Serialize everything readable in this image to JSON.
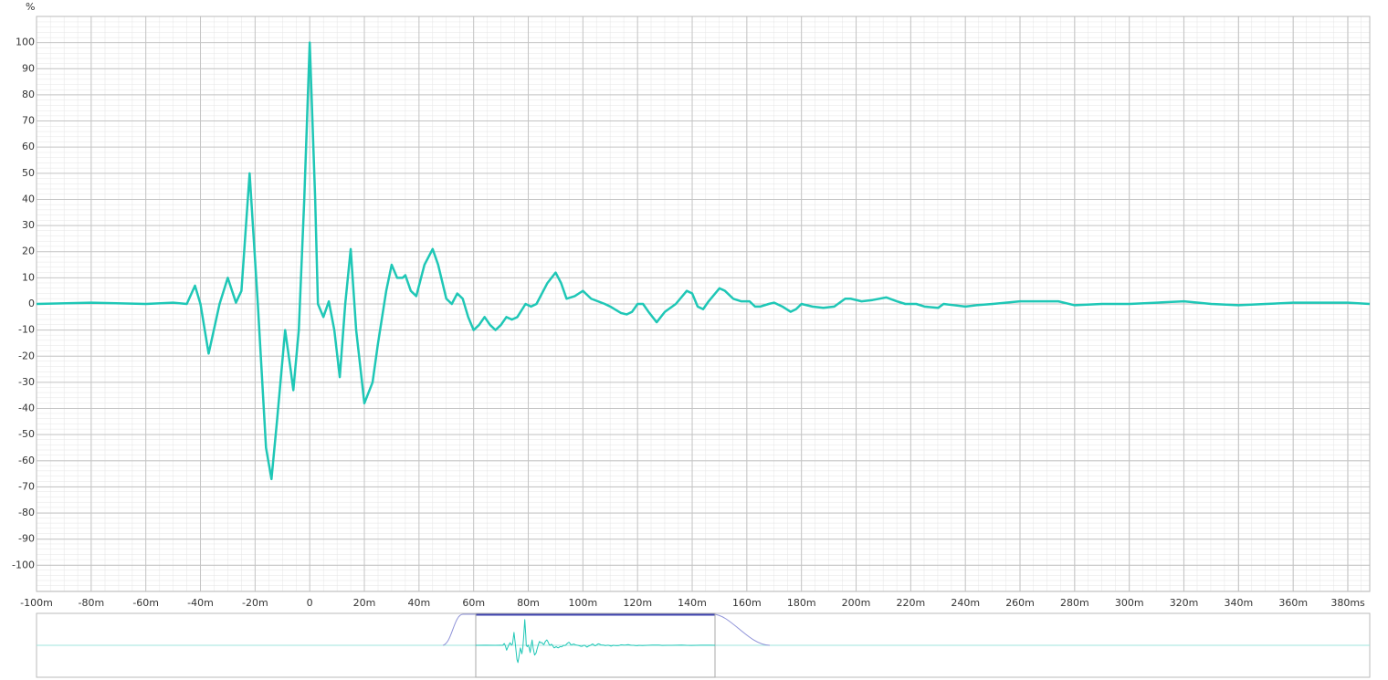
{
  "chart_data": {
    "type": "line",
    "y_label": "%",
    "xlim": [
      -100,
      388
    ],
    "ylim": [
      -110,
      110
    ],
    "grid": true,
    "xticks": [
      {
        "value": -100,
        "label": "-100m"
      },
      {
        "value": -80,
        "label": "-80m"
      },
      {
        "value": -60,
        "label": "-60m"
      },
      {
        "value": -40,
        "label": "-40m"
      },
      {
        "value": -20,
        "label": "-20m"
      },
      0,
      {
        "value": 20,
        "label": "20m"
      },
      {
        "value": 40,
        "label": "40m"
      },
      {
        "value": 60,
        "label": "60m"
      },
      {
        "value": 80,
        "label": "80m"
      },
      {
        "value": 100,
        "label": "100m"
      },
      {
        "value": 120,
        "label": "120m"
      },
      {
        "value": 140,
        "label": "140m"
      },
      {
        "value": 160,
        "label": "160m"
      },
      {
        "value": 180,
        "label": "180m"
      },
      {
        "value": 200,
        "label": "200m"
      },
      {
        "value": 220,
        "label": "220m"
      },
      {
        "value": 240,
        "label": "240m"
      },
      {
        "value": 260,
        "label": "260m"
      },
      {
        "value": 280,
        "label": "280m"
      },
      {
        "value": 300,
        "label": "300m"
      },
      {
        "value": 320,
        "label": "320m"
      },
      {
        "value": 340,
        "label": "340m"
      },
      {
        "value": 360,
        "label": "360m"
      },
      {
        "value": 380,
        "label": "380ms"
      }
    ],
    "yticks": [
      -100,
      -90,
      -80,
      -70,
      -60,
      -50,
      -40,
      -30,
      -20,
      -10,
      0,
      10,
      20,
      30,
      40,
      50,
      60,
      70,
      80,
      90,
      100
    ],
    "series": [
      {
        "color": "#1fc7b6",
        "x": [
          -100,
          -80,
          -60,
          -50,
          -45,
          -42,
          -40,
          -37,
          -33,
          -30,
          -27,
          -25,
          -22,
          -19,
          -16,
          -14,
          -12,
          -9,
          -7,
          -6,
          -4,
          -2,
          0,
          2,
          3,
          5,
          7,
          9,
          11,
          13,
          15,
          17,
          20,
          23,
          25,
          28,
          30,
          32,
          34,
          35,
          37,
          39,
          42,
          45,
          47,
          50,
          52,
          54,
          56,
          58,
          60,
          62,
          64,
          66,
          68,
          70,
          72,
          74,
          76,
          79,
          81,
          83,
          87,
          90,
          92,
          94,
          97,
          100,
          103,
          108,
          110,
          114,
          116,
          118,
          120,
          122,
          124,
          127,
          130,
          134,
          138,
          140,
          142,
          144,
          146,
          150,
          152,
          155,
          158,
          161,
          163,
          165,
          168,
          170,
          173,
          176,
          178,
          180,
          184,
          188,
          192,
          196,
          198,
          202,
          206,
          211,
          215,
          218,
          222,
          225,
          230,
          232,
          236,
          240,
          244,
          250,
          260,
          270,
          274,
          280,
          290,
          300,
          310,
          320,
          330,
          340,
          350,
          360,
          370,
          380,
          388
        ],
        "values": [
          0,
          0.5,
          0,
          0.5,
          0,
          7,
          0,
          -19,
          0,
          10,
          0.5,
          5,
          50,
          0,
          -55,
          -67,
          -45,
          -10,
          -25,
          -33,
          -10,
          40,
          100,
          40,
          0,
          -5,
          1,
          -10,
          -28,
          0,
          21,
          -10,
          -38,
          -30,
          -15,
          5,
          15,
          10,
          10,
          11,
          5,
          3,
          15,
          21,
          15,
          2,
          0,
          4,
          2,
          -5,
          -10,
          -8,
          -5,
          -8,
          -10,
          -8,
          -5,
          -6,
          -5,
          0,
          -1,
          0,
          8,
          12,
          8,
          2,
          3,
          5,
          2,
          0,
          -1,
          -3.5,
          -4,
          -3,
          0,
          0,
          -3,
          -7,
          -3,
          0,
          5,
          4,
          -1,
          -2,
          1,
          6,
          5,
          2,
          1,
          1,
          -1,
          -1,
          0,
          0.5,
          -1,
          -3,
          -2,
          0,
          -1,
          -1.5,
          -1,
          2,
          2,
          1,
          1.5,
          2.5,
          1,
          0,
          0,
          -1,
          -1.5,
          0,
          -0.5,
          -1,
          -0.5,
          0,
          1,
          1,
          1,
          -0.5,
          0,
          0,
          0.5,
          1,
          0,
          -0.5,
          0,
          0.5,
          0.5,
          0.5,
          0
        ]
      }
    ]
  }
}
